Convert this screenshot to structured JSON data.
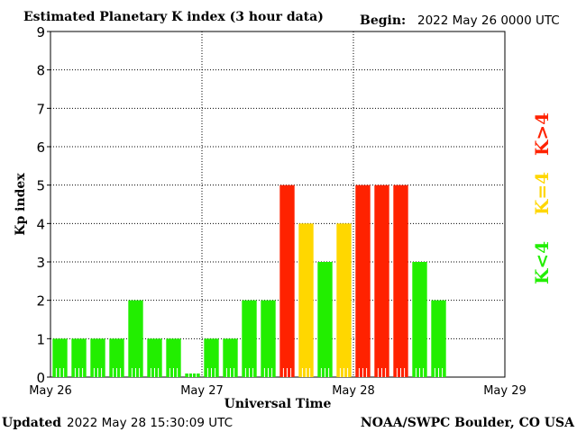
{
  "header": {
    "title": "Estimated Planetary K index (3 hour data)",
    "begin_label": "Begin:",
    "begin_value": "2022 May 26 0000 UTC"
  },
  "footer": {
    "updated_label": "Updated",
    "updated_value": "2022 May 28 15:30:09 UTC",
    "source": "NOAA/SWPC Boulder, CO USA"
  },
  "legend": {
    "low": {
      "label": "K<4",
      "color": "#22ee00"
    },
    "mid": {
      "label": "K=4",
      "color": "#ffd700"
    },
    "high": {
      "label": "K>4",
      "color": "#ff2200"
    }
  },
  "chart_data": {
    "type": "bar",
    "title": "Estimated Planetary K index (3 hour data)",
    "xlabel": "Universal Time",
    "ylabel": "Kp index",
    "ylim": [
      0,
      9
    ],
    "yticks": [
      "0",
      "1",
      "2",
      "3",
      "4",
      "5",
      "6",
      "7",
      "8",
      "9"
    ],
    "xticks": [
      "May 26",
      "May 27",
      "May 28",
      "May 29"
    ],
    "grid": true,
    "interval_hours": 3,
    "total_intervals": 24,
    "values": [
      1,
      1,
      1,
      1,
      2,
      1,
      1,
      0,
      1,
      1,
      2,
      2,
      5,
      4,
      3,
      4,
      5,
      5,
      5,
      3,
      2
    ]
  }
}
